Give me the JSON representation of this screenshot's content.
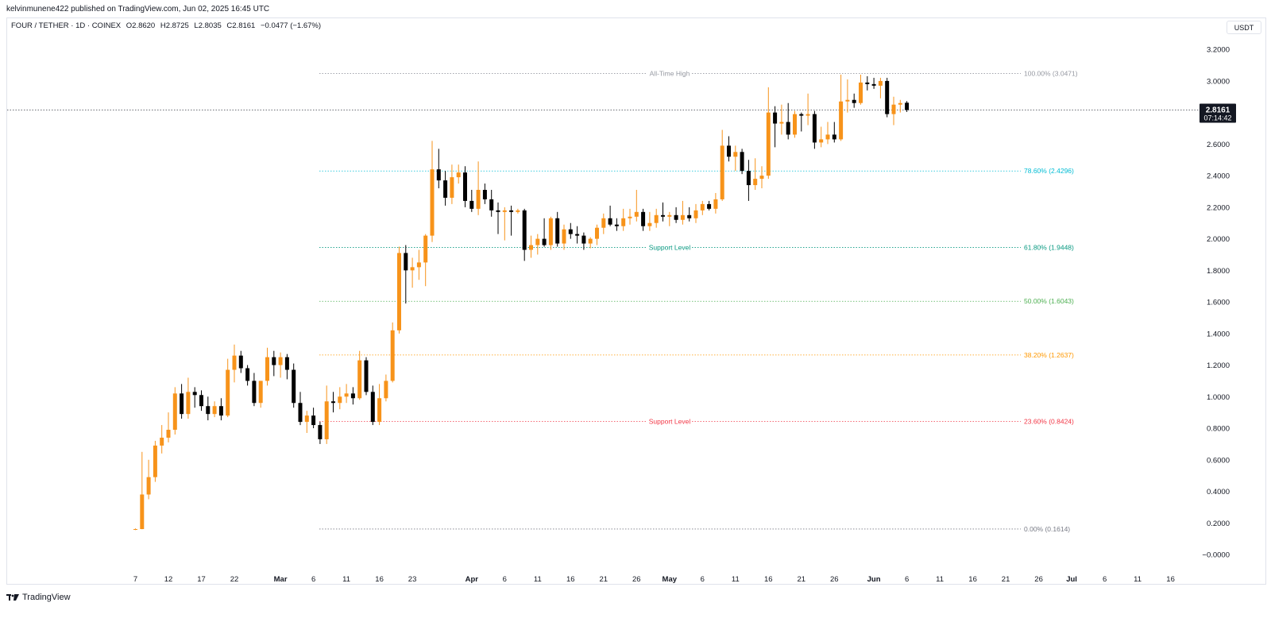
{
  "publish_line": "kelvinmunene422 published on TradingView.com, Jun 02, 2025 16:45 UTC",
  "symbol": {
    "name": "FOUR / TETHER · 1D · COINEX",
    "open": "O2.8620",
    "high": "H2.8725",
    "low": "L2.8035",
    "close": "C2.8161",
    "change": "−0.0477 (−1.67%)"
  },
  "currency_button": "USDT",
  "footer_brand": "TradingView",
  "colors": {
    "up": "#f7931a",
    "down": "#000000",
    "grid_text": "#131722",
    "ath": "#9598a1",
    "fib786": "#00bcd4",
    "fib618": "#089981",
    "fib50": "#4caf50",
    "fib382": "#ff9800",
    "fib236": "#f23645",
    "fib0": "#787b86"
  },
  "chart_data": {
    "type": "candlestick",
    "yaxis_ticks": [
      "3.2000",
      "3.0000",
      "2.8000",
      "2.6000",
      "2.4000",
      "2.2000",
      "2.0000",
      "1.8000",
      "1.6000",
      "1.4000",
      "1.2000",
      "1.0000",
      "0.8000",
      "0.6000",
      "0.4000",
      "0.2000",
      "−0.0000"
    ],
    "yaxis_tick_values": [
      3.2,
      3.0,
      2.8,
      2.6,
      2.4,
      2.2,
      2.0,
      1.8,
      1.6,
      1.4,
      1.2,
      1.0,
      0.8,
      0.6,
      0.4,
      0.2,
      0.0
    ],
    "ylim": [
      -0.03,
      3.3
    ],
    "xaxis_ticks": [
      {
        "label": "7",
        "day": 0
      },
      {
        "label": "12",
        "day": 5
      },
      {
        "label": "17",
        "day": 10
      },
      {
        "label": "22",
        "day": 15
      },
      {
        "label": "Mar",
        "day": 22,
        "bold": true
      },
      {
        "label": "6",
        "day": 27
      },
      {
        "label": "11",
        "day": 32
      },
      {
        "label": "16",
        "day": 37
      },
      {
        "label": "23",
        "day": 42
      },
      {
        "label": "Apr",
        "day": 51,
        "bold": true
      },
      {
        "label": "6",
        "day": 56
      },
      {
        "label": "11",
        "day": 61
      },
      {
        "label": "16",
        "day": 66
      },
      {
        "label": "21",
        "day": 71
      },
      {
        "label": "26",
        "day": 76
      },
      {
        "label": "May",
        "day": 81,
        "bold": true
      },
      {
        "label": "6",
        "day": 86
      },
      {
        "label": "11",
        "day": 91
      },
      {
        "label": "16",
        "day": 96
      },
      {
        "label": "21",
        "day": 101
      },
      {
        "label": "26",
        "day": 106
      },
      {
        "label": "Jun",
        "day": 112,
        "bold": true
      },
      {
        "label": "6",
        "day": 117
      },
      {
        "label": "11",
        "day": 122
      },
      {
        "label": "16",
        "day": 127
      },
      {
        "label": "21",
        "day": 132
      },
      {
        "label": "26",
        "day": 137
      },
      {
        "label": "Jul",
        "day": 142,
        "bold": true
      },
      {
        "label": "6",
        "day": 147
      },
      {
        "label": "11",
        "day": 152
      },
      {
        "label": "16",
        "day": 157
      }
    ],
    "candles": [
      [
        0,
        0.161,
        0.165,
        0.155,
        0.161
      ],
      [
        1,
        0.161,
        0.65,
        0.16,
        0.38
      ],
      [
        2,
        0.38,
        0.6,
        0.35,
        0.49
      ],
      [
        3,
        0.49,
        0.72,
        0.46,
        0.69
      ],
      [
        4,
        0.69,
        0.82,
        0.64,
        0.74
      ],
      [
        5,
        0.74,
        0.9,
        0.71,
        0.79
      ],
      [
        6,
        0.79,
        1.06,
        0.76,
        1.02
      ],
      [
        7,
        1.02,
        1.08,
        0.86,
        0.89
      ],
      [
        8,
        0.89,
        1.12,
        0.86,
        1.03
      ],
      [
        9,
        1.03,
        1.06,
        0.93,
        1.01
      ],
      [
        10,
        1.01,
        1.04,
        0.91,
        0.94
      ],
      [
        11,
        0.94,
        1.0,
        0.85,
        0.89
      ],
      [
        12,
        0.89,
        0.97,
        0.87,
        0.94
      ],
      [
        13,
        0.94,
        0.99,
        0.85,
        0.88
      ],
      [
        14,
        0.88,
        1.24,
        0.87,
        1.17
      ],
      [
        15,
        1.17,
        1.33,
        1.09,
        1.26
      ],
      [
        16,
        1.26,
        1.29,
        1.15,
        1.18
      ],
      [
        17,
        1.18,
        1.2,
        1.07,
        1.1
      ],
      [
        18,
        1.1,
        1.15,
        0.94,
        0.96
      ],
      [
        19,
        0.96,
        1.1,
        0.93,
        1.1
      ],
      [
        20,
        1.1,
        1.31,
        1.07,
        1.25
      ],
      [
        21,
        1.25,
        1.29,
        1.13,
        1.2
      ],
      [
        22,
        1.2,
        1.28,
        1.12,
        1.25
      ],
      [
        23,
        1.25,
        1.27,
        1.11,
        1.17
      ],
      [
        24,
        1.17,
        1.21,
        0.93,
        0.96
      ],
      [
        25,
        0.96,
        1.03,
        0.82,
        0.84
      ],
      [
        26,
        0.84,
        0.91,
        0.77,
        0.88
      ],
      [
        27,
        0.88,
        0.93,
        0.8,
        0.82
      ],
      [
        28,
        0.82,
        0.84,
        0.7,
        0.73
      ],
      [
        29,
        0.73,
        1.07,
        0.7,
        0.97
      ],
      [
        30,
        0.97,
        1.03,
        0.9,
        0.96
      ],
      [
        31,
        0.96,
        1.06,
        0.92,
        1.0
      ],
      [
        32,
        1.0,
        1.08,
        0.96,
        1.02
      ],
      [
        33,
        1.02,
        1.06,
        0.95,
        0.99
      ],
      [
        34,
        0.99,
        1.29,
        0.98,
        1.23
      ],
      [
        35,
        1.23,
        1.25,
        1.01,
        1.03
      ],
      [
        36,
        1.03,
        1.07,
        0.82,
        0.84
      ],
      [
        37,
        0.84,
        1.08,
        0.82,
        0.99
      ],
      [
        38,
        0.99,
        1.14,
        0.97,
        1.1
      ],
      [
        39,
        1.1,
        1.47,
        1.09,
        1.42
      ],
      [
        40,
        1.42,
        1.95,
        1.4,
        1.91
      ],
      [
        41,
        1.91,
        1.96,
        1.59,
        1.8
      ],
      [
        42,
        1.8,
        1.88,
        1.69,
        1.82
      ],
      [
        43,
        1.82,
        1.93,
        1.74,
        1.85
      ],
      [
        44,
        1.85,
        2.03,
        1.7,
        2.02
      ],
      [
        45,
        2.02,
        2.62,
        1.98,
        2.44
      ],
      [
        46,
        2.44,
        2.57,
        2.32,
        2.37
      ],
      [
        47,
        2.37,
        2.43,
        2.21,
        2.26
      ],
      [
        48,
        2.26,
        2.47,
        2.22,
        2.39
      ],
      [
        49,
        2.39,
        2.47,
        2.35,
        2.42
      ],
      [
        50,
        2.42,
        2.46,
        2.2,
        2.24
      ],
      [
        51,
        2.24,
        2.31,
        2.17,
        2.19
      ],
      [
        52,
        2.19,
        2.49,
        2.15,
        2.31
      ],
      [
        53,
        2.31,
        2.35,
        2.22,
        2.25
      ],
      [
        54,
        2.25,
        2.31,
        2.14,
        2.18
      ],
      [
        55,
        2.18,
        2.23,
        2.03,
        2.17
      ],
      [
        56,
        2.17,
        2.2,
        1.99,
        2.18
      ],
      [
        57,
        2.18,
        2.21,
        2.02,
        2.17
      ],
      [
        58,
        2.17,
        2.19,
        2.16,
        2.18
      ],
      [
        59,
        2.18,
        2.19,
        1.86,
        1.93
      ],
      [
        60,
        1.93,
        2.02,
        1.88,
        1.96
      ],
      [
        61,
        1.96,
        2.03,
        1.9,
        2.0
      ],
      [
        62,
        2.0,
        2.13,
        1.95,
        1.96
      ],
      [
        63,
        1.96,
        2.14,
        1.93,
        2.13
      ],
      [
        64,
        2.13,
        2.17,
        1.95,
        1.97
      ],
      [
        65,
        1.97,
        2.09,
        1.93,
        2.06
      ],
      [
        66,
        2.06,
        2.1,
        2.0,
        2.03
      ],
      [
        67,
        2.03,
        2.08,
        1.97,
        2.02
      ],
      [
        68,
        2.02,
        2.04,
        1.93,
        1.97
      ],
      [
        69,
        1.97,
        2.01,
        1.94,
        2.0
      ],
      [
        70,
        2.0,
        2.09,
        1.96,
        2.07
      ],
      [
        71,
        2.07,
        2.16,
        2.03,
        2.13
      ],
      [
        72,
        2.13,
        2.21,
        2.08,
        2.09
      ],
      [
        73,
        2.09,
        2.13,
        2.05,
        2.08
      ],
      [
        74,
        2.08,
        2.19,
        2.05,
        2.13
      ],
      [
        75,
        2.13,
        2.19,
        2.09,
        2.14
      ],
      [
        76,
        2.14,
        2.31,
        2.11,
        2.17
      ],
      [
        77,
        2.17,
        2.19,
        2.05,
        2.08
      ],
      [
        78,
        2.08,
        2.17,
        2.05,
        2.1
      ],
      [
        79,
        2.1,
        2.19,
        2.07,
        2.15
      ],
      [
        80,
        2.15,
        2.23,
        2.11,
        2.14
      ],
      [
        81,
        2.14,
        2.17,
        2.08,
        2.15
      ],
      [
        82,
        2.15,
        2.2,
        2.1,
        2.12
      ],
      [
        83,
        2.12,
        2.24,
        2.09,
        2.15
      ],
      [
        84,
        2.15,
        2.2,
        2.11,
        2.13
      ],
      [
        85,
        2.13,
        2.22,
        2.1,
        2.18
      ],
      [
        86,
        2.18,
        2.24,
        2.15,
        2.22
      ],
      [
        87,
        2.22,
        2.24,
        2.18,
        2.19
      ],
      [
        88,
        2.19,
        2.29,
        2.16,
        2.25
      ],
      [
        89,
        2.25,
        2.69,
        2.24,
        2.59
      ],
      [
        90,
        2.59,
        2.65,
        2.49,
        2.52
      ],
      [
        91,
        2.52,
        2.59,
        2.43,
        2.55
      ],
      [
        92,
        2.55,
        2.57,
        2.41,
        2.43
      ],
      [
        93,
        2.43,
        2.5,
        2.24,
        2.34
      ],
      [
        94,
        2.34,
        2.51,
        2.31,
        2.38
      ],
      [
        95,
        2.38,
        2.46,
        2.32,
        2.4
      ],
      [
        96,
        2.4,
        2.96,
        2.38,
        2.8
      ],
      [
        97,
        2.8,
        2.84,
        2.58,
        2.73
      ],
      [
        98,
        2.73,
        2.85,
        2.66,
        2.74
      ],
      [
        99,
        2.74,
        2.86,
        2.63,
        2.66
      ],
      [
        100,
        2.66,
        2.81,
        2.64,
        2.79
      ],
      [
        101,
        2.79,
        2.8,
        2.68,
        2.78
      ],
      [
        102,
        2.78,
        2.92,
        2.72,
        2.79
      ],
      [
        103,
        2.79,
        2.81,
        2.57,
        2.61
      ],
      [
        104,
        2.61,
        2.71,
        2.58,
        2.63
      ],
      [
        105,
        2.63,
        2.74,
        2.6,
        2.66
      ],
      [
        106,
        2.66,
        2.74,
        2.61,
        2.63
      ],
      [
        107,
        2.63,
        3.04,
        2.62,
        2.87
      ],
      [
        108,
        2.87,
        3.01,
        2.8,
        2.88
      ],
      [
        109,
        2.88,
        2.92,
        2.83,
        2.86
      ],
      [
        110,
        2.86,
        3.04,
        2.85,
        2.99
      ],
      [
        111,
        2.99,
        3.03,
        2.94,
        2.98
      ],
      [
        112,
        2.98,
        3.02,
        2.95,
        2.97
      ],
      [
        113,
        2.97,
        3.02,
        2.89,
        3.0
      ],
      [
        114,
        3.0,
        3.02,
        2.77,
        2.79
      ],
      [
        115,
        2.79,
        2.9,
        2.72,
        2.85
      ],
      [
        116,
        2.85,
        2.88,
        2.8,
        2.86
      ],
      [
        117,
        2.862,
        2.8725,
        2.8035,
        2.8161
      ]
    ],
    "hlines": [
      {
        "value": 3.0471,
        "label": "100.00% (3.0471)",
        "center_label": "All-Time High",
        "color": "#9598a1"
      },
      {
        "value": 2.4296,
        "label": "78.60% (2.4296)",
        "center_label": "",
        "color": "#00bcd4"
      },
      {
        "value": 1.9448,
        "label": "61.80% (1.9448)",
        "center_label": "Support Level",
        "color": "#089981"
      },
      {
        "value": 1.6043,
        "label": "50.00% (1.6043)",
        "center_label": "",
        "color": "#4caf50"
      },
      {
        "value": 1.2637,
        "label": "38.20% (1.2637)",
        "center_label": "",
        "color": "#ff9800"
      },
      {
        "value": 0.8424,
        "label": "23.60% (0.8424)",
        "center_label": "Support Level",
        "color": "#f23645"
      },
      {
        "value": 0.1614,
        "label": "0.00% (0.1614)",
        "center_label": "",
        "color": "#787b86"
      }
    ],
    "last_price": {
      "value": 2.8161,
      "label": "2.8161",
      "countdown": "07:14:42"
    }
  }
}
